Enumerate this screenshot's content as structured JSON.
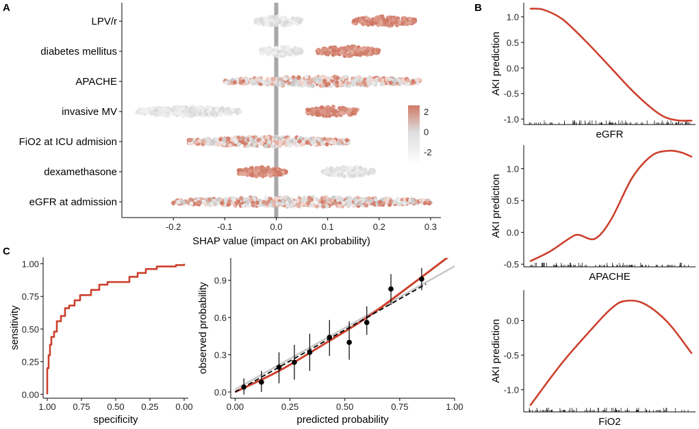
{
  "panel_labels": [
    "A",
    "B",
    "C"
  ],
  "chart_data": [
    {
      "id": "shap",
      "type": "scatter",
      "title": "",
      "xlabel": "SHAP value (impact on AKI probability)",
      "ylabel": "",
      "xlim": [
        -0.3,
        0.32
      ],
      "xticks": [
        -0.2,
        -0.1,
        0.0,
        0.1,
        0.2,
        0.3
      ],
      "xtick_labels": [
        "-0.2",
        "-0.1",
        "0.0",
        "0.1",
        "0.2",
        "0.3"
      ],
      "categories": [
        "LPV/r",
        "diabetes mellitus",
        "APACHE",
        "invasive MV",
        "FiO2 at ICU admision",
        "dexamethasone",
        "eGFR at admission"
      ],
      "legend": {
        "ticks": [
          2,
          0,
          -2
        ],
        "tick_labels": [
          "2",
          "0",
          "-2"
        ],
        "low": "#ffffff",
        "mid": "#dddddd",
        "high": "#d07a68",
        "position": "right"
      },
      "clusters": [
        {
          "feature": "LPV/r",
          "from": -0.04,
          "to": 0.05,
          "color": 0
        },
        {
          "feature": "LPV/r",
          "from": 0.15,
          "to": 0.27,
          "color": 1
        },
        {
          "feature": "diabetes mellitus",
          "from": -0.03,
          "to": 0.05,
          "color": 0
        },
        {
          "feature": "diabetes mellitus",
          "from": 0.08,
          "to": 0.2,
          "color": 1
        },
        {
          "feature": "APACHE",
          "from": -0.1,
          "to": 0.28,
          "color": 2
        },
        {
          "feature": "invasive MV",
          "from": -0.27,
          "to": -0.07,
          "color": 0
        },
        {
          "feature": "invasive MV",
          "from": 0.06,
          "to": 0.16,
          "color": 1
        },
        {
          "feature": "FiO2 at ICU admision",
          "from": -0.17,
          "to": 0.14,
          "color": 2
        },
        {
          "feature": "dexamethasone",
          "from": -0.075,
          "to": 0.02,
          "color": 1
        },
        {
          "feature": "dexamethasone",
          "from": 0.09,
          "to": 0.19,
          "color": 0
        },
        {
          "feature": "eGFR at admission",
          "from": -0.2,
          "to": 0.3,
          "color": 2
        }
      ]
    },
    {
      "id": "pdp-egfr",
      "type": "line",
      "xlabel": "eGFR",
      "ylabel": "AKI prediction",
      "ylim": [
        -1.08,
        1.25
      ],
      "yticks": [
        -1.0,
        -0.5,
        0.0,
        0.5,
        1.0
      ],
      "ytick_labels": [
        "-1.0",
        "-0.5",
        "0.0",
        "0.5",
        "1.0"
      ],
      "x": [
        0,
        0.08,
        0.2,
        0.35,
        0.5,
        0.65,
        0.8,
        0.9,
        1.0
      ],
      "values": [
        1.16,
        1.14,
        0.95,
        0.5,
        0.0,
        -0.5,
        -0.9,
        -1.02,
        -1.03
      ]
    },
    {
      "id": "pdp-apache",
      "type": "line",
      "xlabel": "APACHE",
      "ylabel": "AKI prediction",
      "ylim": [
        -0.52,
        1.35
      ],
      "yticks": [
        -0.5,
        0.0,
        0.5,
        1.0
      ],
      "ytick_labels": [
        "-0.5",
        "0.0",
        "0.5",
        "1.0"
      ],
      "x": [
        0,
        0.12,
        0.25,
        0.3,
        0.4,
        0.5,
        0.63,
        0.75,
        0.85,
        0.93,
        1.0
      ],
      "values": [
        -0.45,
        -0.3,
        -0.08,
        -0.04,
        -0.1,
        0.2,
        0.85,
        1.2,
        1.28,
        1.26,
        1.19
      ]
    },
    {
      "id": "pdp-fio2",
      "type": "line",
      "xlabel": "FiO2",
      "ylabel": "AKI prediction",
      "ylim": [
        -1.3,
        0.42
      ],
      "yticks": [
        -1.0,
        -0.5,
        0.0
      ],
      "ytick_labels": [
        "-1.0",
        "-0.5",
        "0.0"
      ],
      "x": [
        0,
        0.2,
        0.4,
        0.5,
        0.58,
        0.7,
        0.85,
        1.0
      ],
      "values": [
        -1.22,
        -0.6,
        -0.07,
        0.17,
        0.28,
        0.25,
        -0.02,
        -0.47
      ]
    },
    {
      "id": "roc",
      "type": "line",
      "xlabel": "specificity",
      "ylabel": "sensitivity",
      "xlim": [
        1.0,
        0.0
      ],
      "ylim": [
        0.0,
        1.0
      ],
      "xticks": [
        1.0,
        0.75,
        0.5,
        0.25,
        0.0
      ],
      "xtick_labels": [
        "1.00",
        "0.75",
        "0.50",
        "0.25",
        "0.00"
      ],
      "yticks": [
        0.0,
        0.25,
        0.5,
        0.75,
        1.0
      ],
      "ytick_labels": [
        "0.00",
        "0.25",
        "0.50",
        "0.75",
        "1.00"
      ],
      "x": [
        1.0,
        1.0,
        0.99,
        0.98,
        0.97,
        0.95,
        0.93,
        0.9,
        0.87,
        0.84,
        0.8,
        0.76,
        0.72,
        0.68,
        0.62,
        0.56,
        0.48,
        0.4,
        0.34,
        0.28,
        0.2,
        0.12,
        0.06,
        0.0
      ],
      "values": [
        0.0,
        0.2,
        0.3,
        0.38,
        0.44,
        0.48,
        0.56,
        0.6,
        0.66,
        0.68,
        0.72,
        0.76,
        0.76,
        0.8,
        0.84,
        0.86,
        0.86,
        0.9,
        0.93,
        0.96,
        0.98,
        0.98,
        0.99,
        1.0
      ]
    },
    {
      "id": "calibration",
      "type": "scatter",
      "xlabel": "predicted probability",
      "ylabel": "observed probability",
      "xlim": [
        -0.02,
        1.0
      ],
      "ylim": [
        -0.05,
        1.08
      ],
      "xticks": [
        0.0,
        0.25,
        0.5,
        0.75,
        1.0
      ],
      "xtick_labels": [
        "0.00",
        "0.25",
        "0.50",
        "0.75",
        "1.00"
      ],
      "yticks": [
        0.0,
        0.3,
        0.6,
        0.9
      ],
      "ytick_labels": [
        "0.0",
        "0.3",
        "0.6",
        "0.9"
      ],
      "x": [
        0.04,
        0.12,
        0.2,
        0.27,
        0.34,
        0.43,
        0.52,
        0.6,
        0.71,
        0.85
      ],
      "values": [
        0.04,
        0.08,
        0.2,
        0.24,
        0.32,
        0.44,
        0.4,
        0.56,
        0.83,
        0.91
      ],
      "err_low": [
        -0.02,
        0.0,
        0.07,
        0.1,
        0.17,
        0.29,
        0.26,
        0.46,
        0.7,
        0.82
      ],
      "err_high": [
        0.11,
        0.17,
        0.32,
        0.38,
        0.47,
        0.58,
        0.57,
        0.69,
        0.95,
        1.0
      ],
      "fit_x": [
        0.0,
        0.2,
        0.4,
        0.6,
        0.8,
        0.98
      ],
      "fit_y": [
        0.0,
        0.17,
        0.38,
        0.6,
        0.86,
        1.1
      ],
      "identity": [
        [
          0.0,
          0.0
        ],
        [
          1.0,
          1.0
        ]
      ],
      "reference": [
        [
          0.0,
          0.02
        ],
        [
          1.0,
          1.02
        ]
      ]
    }
  ]
}
